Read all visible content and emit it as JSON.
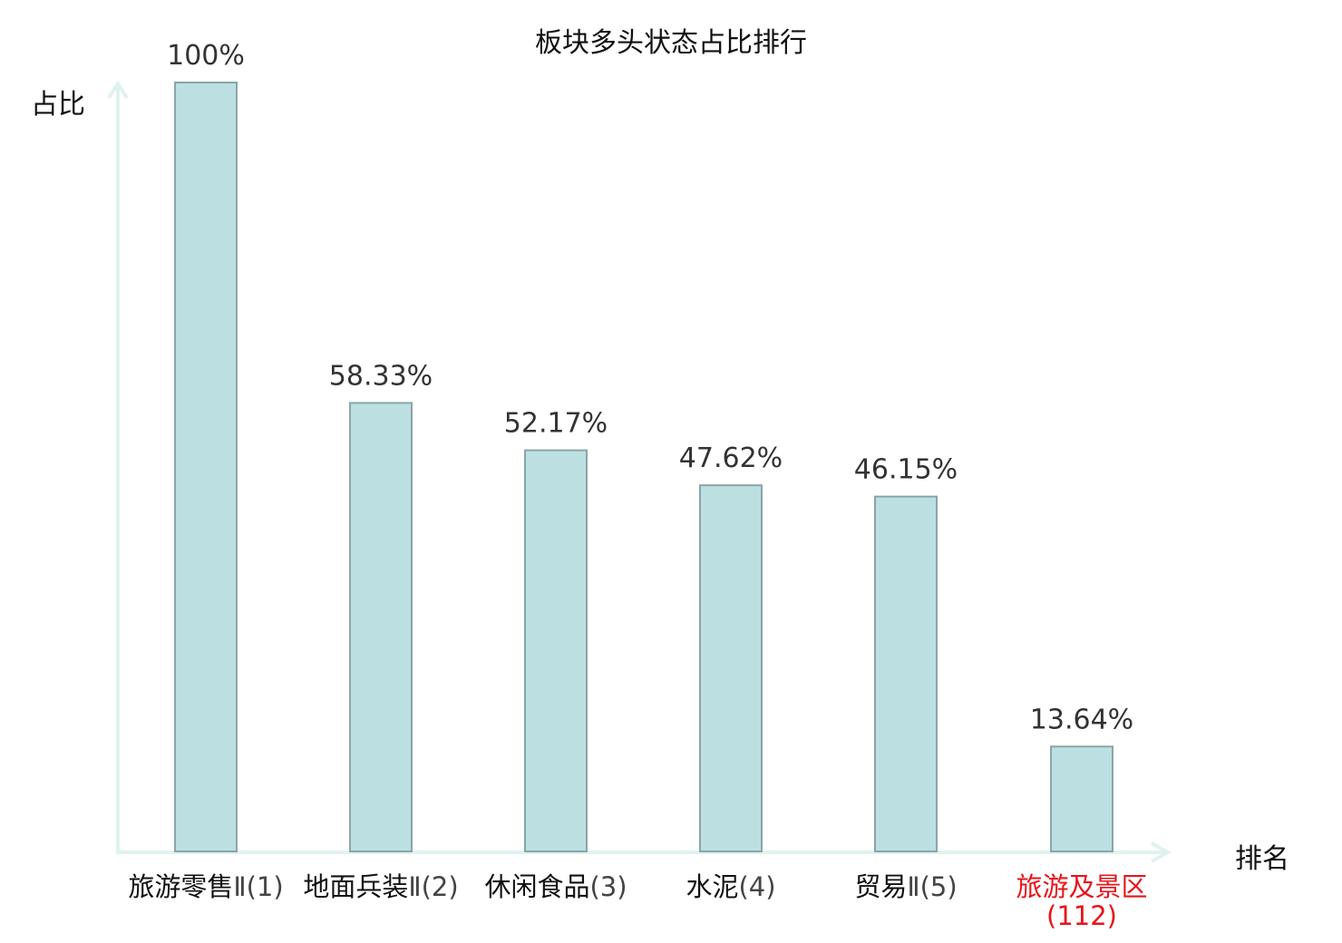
{
  "chart_data": {
    "type": "bar",
    "title": "板块多头状态占比排行",
    "xlabel": "排名",
    "ylabel": "占比",
    "ylim": [
      0,
      100
    ],
    "grid": false,
    "categories": [
      "旅游零售Ⅱ(1)",
      "地面兵装Ⅱ(2)",
      "休闲食品(3)",
      "水泥(4)",
      "贸易Ⅱ(5)",
      "旅游及景区(112)"
    ],
    "category_parts": [
      {
        "name": "旅游零售",
        "suffix": "Ⅱ(1)"
      },
      {
        "name": "地面兵装",
        "suffix": "Ⅱ(2)"
      },
      {
        "name": "休闲食品",
        "suffix": "(3)"
      },
      {
        "name": "水泥",
        "suffix": "(4)"
      },
      {
        "name": "贸易",
        "suffix": "Ⅱ(5)"
      },
      {
        "name": "旅游及景区",
        "suffix": "(112)"
      }
    ],
    "values": [
      100,
      58.33,
      52.17,
      47.62,
      46.15,
      13.64
    ],
    "data_labels": [
      "100%",
      "58.33%",
      "52.17%",
      "47.62%",
      "46.15%",
      "13.64%"
    ],
    "highlight_index": 5,
    "colors": {
      "bar_fill": "#bce0e2",
      "bar_stroke": "#8aa5a8",
      "axis": "#e0f2ef",
      "label_text": "#333333",
      "highlight": "#e8141b"
    }
  }
}
